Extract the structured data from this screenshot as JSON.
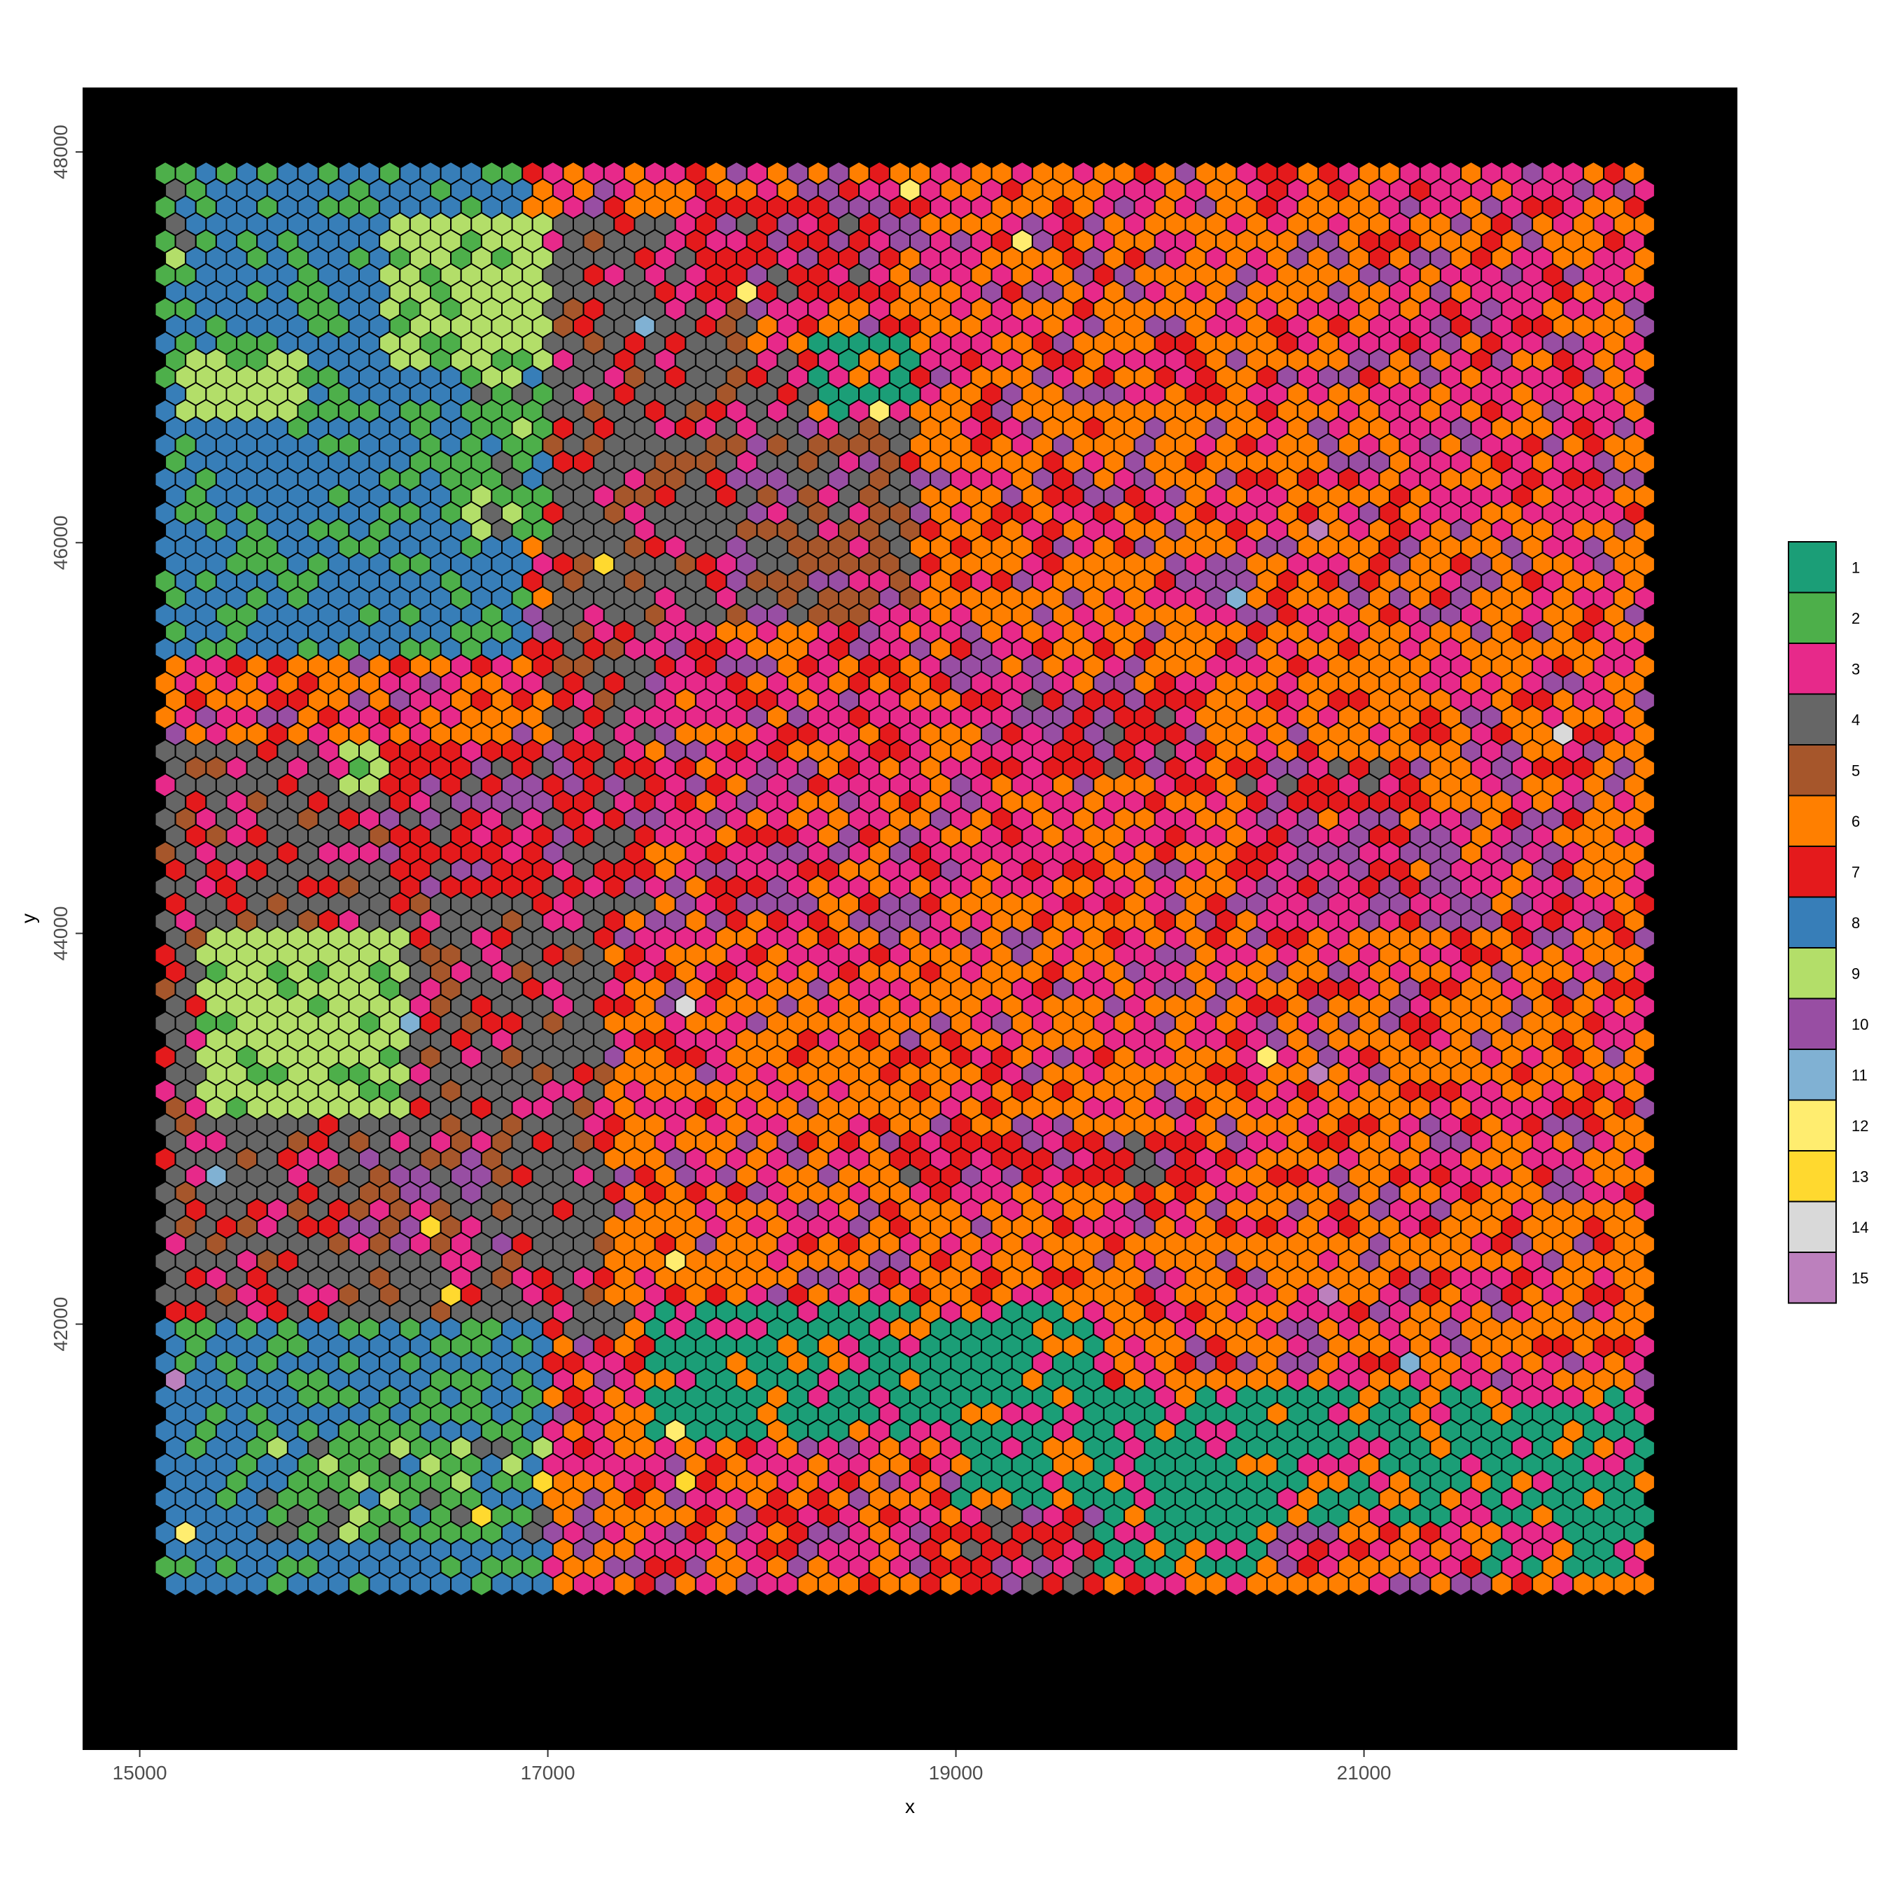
{
  "chart_data": {
    "type": "scatter",
    "title": "",
    "xlabel": "x",
    "ylabel": "y",
    "xlim": [
      14720,
      22830
    ],
    "ylim": [
      39820,
      48330
    ],
    "x_ticks": [
      15000,
      17000,
      19000,
      21000
    ],
    "x_tick_labels": [
      "15000",
      "17000",
      "19000",
      "21000"
    ],
    "y_ticks": [
      42000,
      44000,
      46000,
      48000
    ],
    "y_tick_labels": [
      "42000",
      "44000",
      "46000",
      "48000"
    ],
    "panel_background": "#000000",
    "grid": false,
    "marker": "hexagon",
    "marker_edge_color": "#000000",
    "spot_grid": {
      "x_start": 15125,
      "x_end": 22410,
      "x_step": 100,
      "y_start": 47890,
      "y_end": 40650,
      "y_step": 87,
      "odd_row_x_offset": 50
    },
    "legend": {
      "position": "right",
      "entries": [
        {
          "label": "1",
          "color": "#1B9E77"
        },
        {
          "label": "2",
          "color": "#4DAF4A"
        },
        {
          "label": "3",
          "color": "#E7298A"
        },
        {
          "label": "4",
          "color": "#666666"
        },
        {
          "label": "5",
          "color": "#A6562B"
        },
        {
          "label": "6",
          "color": "#FF7F00"
        },
        {
          "label": "7",
          "color": "#E41A1C"
        },
        {
          "label": "8",
          "color": "#377EB8"
        },
        {
          "label": "9",
          "color": "#B3DE69"
        },
        {
          "label": "10",
          "color": "#984EA3"
        },
        {
          "label": "11",
          "color": "#80B1D3"
        },
        {
          "label": "12",
          "color": "#FFED6F"
        },
        {
          "label": "13",
          "color": "#FFD92F"
        },
        {
          "label": "14",
          "color": "#D9D9D9"
        },
        {
          "label": "15",
          "color": "#BC80BD"
        }
      ]
    },
    "regions": [
      {
        "cluster": "8",
        "x": [
          15100,
          16900
        ],
        "y": [
          45400,
          47900
        ]
      },
      {
        "cluster": "2",
        "x": [
          15100,
          15300
        ],
        "y": [
          47300,
          47900
        ]
      },
      {
        "cluster": "9",
        "x": [
          16200,
          17000
        ],
        "y": [
          46900,
          47700
        ]
      },
      {
        "cluster": "2",
        "x": [
          16600,
          17400
        ],
        "y": [
          46000,
          47000
        ]
      },
      {
        "cluster": "9",
        "x": [
          15200,
          15800
        ],
        "y": [
          46600,
          47000
        ]
      },
      {
        "cluster": "4",
        "x": [
          15100,
          17500
        ],
        "y": [
          43000,
          45000
        ]
      },
      {
        "cluster": "9",
        "x": [
          15300,
          16300
        ],
        "y": [
          43100,
          44000
        ]
      },
      {
        "cluster": "9",
        "x": [
          16000,
          16900
        ],
        "y": [
          44700,
          45000
        ]
      },
      {
        "cluster": "7",
        "x": [
          16200,
          17500
        ],
        "y": [
          44200,
          45000
        ]
      },
      {
        "cluster": "4",
        "x": [
          15100,
          17400
        ],
        "y": [
          41900,
          43000
        ]
      },
      {
        "cluster": "5",
        "x": [
          16000,
          16800
        ],
        "y": [
          42400,
          43000
        ]
      },
      {
        "cluster": "8",
        "x": [
          15100,
          17000
        ],
        "y": [
          40650,
          42000
        ]
      },
      {
        "cluster": "2",
        "x": [
          15600,
          17000
        ],
        "y": [
          40900,
          41400
        ]
      },
      {
        "cluster": "4",
        "x": [
          17000,
          18000
        ],
        "y": [
          45000,
          47700
        ]
      },
      {
        "cluster": "7",
        "x": [
          17700,
          18700
        ],
        "y": [
          47200,
          47800
        ]
      },
      {
        "cluster": "4",
        "x": [
          17800,
          18900
        ],
        "y": [
          45500,
          47000
        ]
      },
      {
        "cluster": "5",
        "x": [
          17900,
          18700
        ],
        "y": [
          45600,
          46700
        ]
      },
      {
        "cluster": "1",
        "x": [
          18300,
          19600
        ],
        "y": [
          46600,
          47100
        ]
      },
      {
        "cluster": "6",
        "x": [
          18800,
          22410
        ],
        "y": [
          45600,
          47900
        ]
      },
      {
        "cluster": "3",
        "x": [
          21000,
          22410
        ],
        "y": [
          46000,
          47900
        ]
      },
      {
        "cluster": "3",
        "x": [
          17500,
          19600
        ],
        "y": [
          44000,
          45600
        ]
      },
      {
        "cluster": "7",
        "x": [
          19300,
          20200
        ],
        "y": [
          44800,
          45200
        ]
      },
      {
        "cluster": "7",
        "x": [
          20400,
          21300
        ],
        "y": [
          44400,
          44900
        ]
      },
      {
        "cluster": "10",
        "x": [
          20600,
          22100
        ],
        "y": [
          44000,
          44600
        ]
      },
      {
        "cluster": "6",
        "x": [
          17300,
          20600
        ],
        "y": [
          42100,
          44100
        ]
      },
      {
        "cluster": "1",
        "x": [
          20500,
          21700
        ],
        "y": [
          43500,
          43800
        ]
      },
      {
        "cluster": "7",
        "x": [
          18700,
          20200
        ],
        "y": [
          42700,
          43000
        ]
      },
      {
        "cluster": "6",
        "x": [
          20200,
          22410
        ],
        "y": [
          41900,
          43900
        ]
      },
      {
        "cluster": "1",
        "x": [
          17500,
          19700
        ],
        "y": [
          41400,
          42100
        ]
      },
      {
        "cluster": "1",
        "x": [
          18800,
          22410
        ],
        "y": [
          40700,
          41700
        ]
      },
      {
        "cluster": "7",
        "x": [
          18300,
          19700
        ],
        "y": [
          40650,
          41100
        ]
      },
      {
        "cluster": "3",
        "x": [
          17300,
          19000
        ],
        "y": [
          40650,
          41400
        ]
      },
      {
        "cluster": "6",
        "x": [
          20500,
          21600
        ],
        "y": [
          40650,
          41000
        ]
      }
    ],
    "isolated_spots": [
      {
        "cluster": "12",
        "x": [
          15480,
          15250,
          15300,
          15500,
          15850,
          16930,
          17030,
          16200,
          15330,
          15650,
          16850,
          16400,
          16070,
          21500,
          21050,
          21700,
          22250
        ]
      },
      {
        "cluster": "14",
        "x": [
          21050,
          20750,
          22130,
          19020,
          17800,
          22250
        ]
      },
      {
        "cluster": "11",
        "x": [
          19650,
          21150,
          20750,
          22100,
          21050
        ]
      },
      {
        "cluster": "13",
        "x": [
          20870
        ]
      }
    ]
  }
}
